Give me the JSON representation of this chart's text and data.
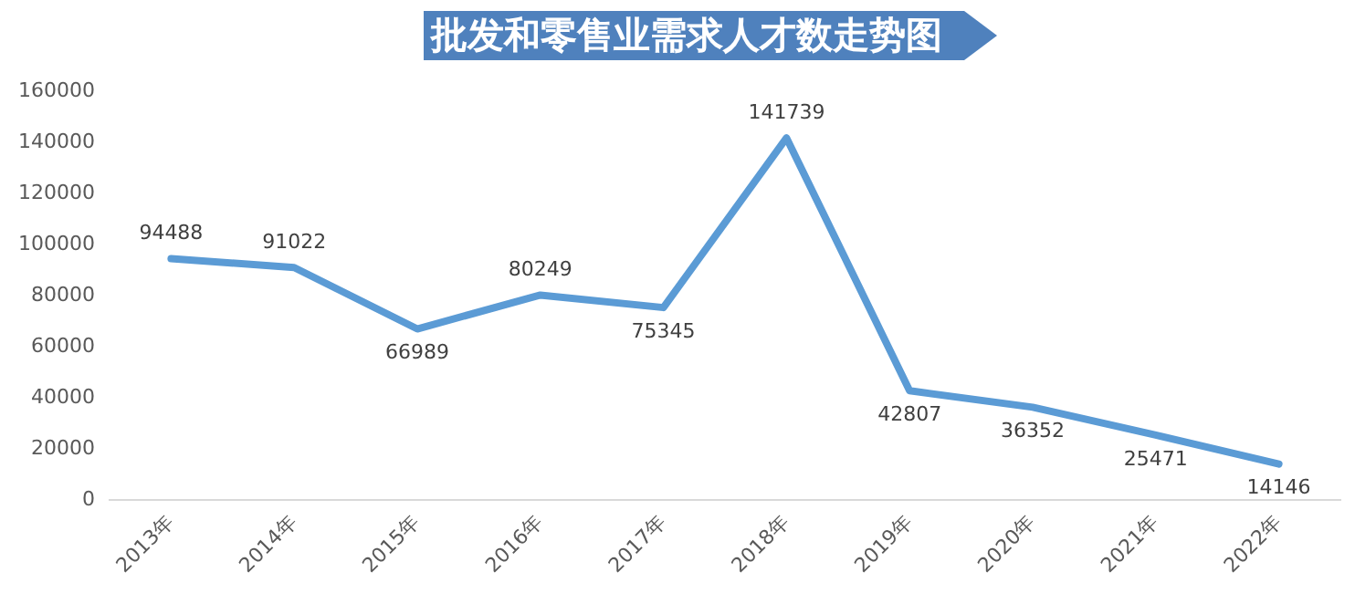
{
  "chart_data": {
    "type": "line",
    "title": "批发和零售业需求人才数走势图",
    "categories": [
      "2013年",
      "2014年",
      "2015年",
      "2016年",
      "2017年",
      "2018年",
      "2019年",
      "2020年",
      "2021年",
      "2022年"
    ],
    "series": [
      {
        "color": "#5b9bd5",
        "values": [
          94488,
          91022,
          66989,
          80249,
          75345,
          141739,
          42807,
          36352,
          25471,
          14146
        ]
      }
    ],
    "ylim": [
      0,
      160000
    ],
    "yticks": [
      0,
      20000,
      40000,
      60000,
      80000,
      100000,
      120000,
      140000,
      160000
    ],
    "grid": false,
    "legend": false,
    "marker": "none",
    "line_style": "solid",
    "data_labels": true
  }
}
